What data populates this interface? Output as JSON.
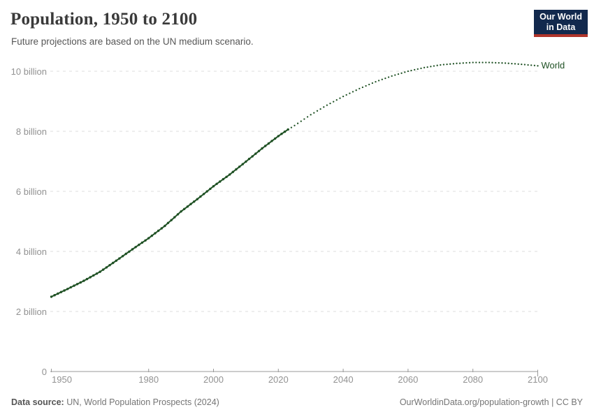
{
  "header": {
    "title": "Population, 1950 to 2100",
    "subtitle": "Future projections are based on the UN medium scenario.",
    "logo": {
      "line1": "Our World",
      "line2": "in Data"
    }
  },
  "chart_data": {
    "type": "line",
    "title": "Population, 1950 to 2100",
    "subtitle": "Future projections are based on the UN medium scenario.",
    "xlabel": "",
    "ylabel": "",
    "xlim": [
      1950,
      2100
    ],
    "ylim": [
      0,
      10.4
    ],
    "grid": "horizontal-dashed",
    "legend_position": "end-of-line",
    "unit": "people",
    "x_ticks": [
      {
        "year": 1950,
        "label": "1950"
      },
      {
        "year": 1980,
        "label": "1980"
      },
      {
        "year": 2000,
        "label": "2000"
      },
      {
        "year": 2020,
        "label": "2020"
      },
      {
        "year": 2040,
        "label": "2040"
      },
      {
        "year": 2060,
        "label": "2060"
      },
      {
        "year": 2080,
        "label": "2080"
      },
      {
        "year": 2100,
        "label": "2100"
      }
    ],
    "y_ticks": [
      {
        "value": 0,
        "label": "0"
      },
      {
        "value": 2,
        "label": "2 billion"
      },
      {
        "value": 4,
        "label": "4 billion"
      },
      {
        "value": 6,
        "label": "6 billion"
      },
      {
        "value": 8,
        "label": "8 billion"
      },
      {
        "value": 10,
        "label": "10 billion"
      }
    ],
    "series": [
      {
        "name": "World",
        "color": "#1f5124",
        "observed_until": 2023,
        "style_observed": "solid-with-dots",
        "style_projection": "dotted",
        "points": [
          [
            1950,
            2.49
          ],
          [
            1955,
            2.75
          ],
          [
            1960,
            3.02
          ],
          [
            1965,
            3.32
          ],
          [
            1970,
            3.69
          ],
          [
            1975,
            4.07
          ],
          [
            1980,
            4.44
          ],
          [
            1985,
            4.85
          ],
          [
            1990,
            5.33
          ],
          [
            1995,
            5.74
          ],
          [
            2000,
            6.17
          ],
          [
            2005,
            6.56
          ],
          [
            2010,
            6.99
          ],
          [
            2015,
            7.43
          ],
          [
            2020,
            7.84
          ],
          [
            2023,
            8.06
          ],
          [
            2025,
            8.19
          ],
          [
            2030,
            8.55
          ],
          [
            2035,
            8.87
          ],
          [
            2040,
            9.16
          ],
          [
            2045,
            9.42
          ],
          [
            2050,
            9.65
          ],
          [
            2055,
            9.84
          ],
          [
            2060,
            10.0
          ],
          [
            2065,
            10.12
          ],
          [
            2070,
            10.21
          ],
          [
            2075,
            10.26
          ],
          [
            2080,
            10.29
          ],
          [
            2085,
            10.29
          ],
          [
            2090,
            10.27
          ],
          [
            2095,
            10.23
          ],
          [
            2100,
            10.18
          ]
        ]
      }
    ],
    "colors": {
      "gridline": "#dcdcdc",
      "axis": "#999999",
      "tick_label": "#929292"
    }
  },
  "footer": {
    "source_label": "Data source:",
    "source_text": " UN, World Population Prospects (2024)",
    "link_text": "OurWorldinData.org/population-growth | CC BY"
  }
}
